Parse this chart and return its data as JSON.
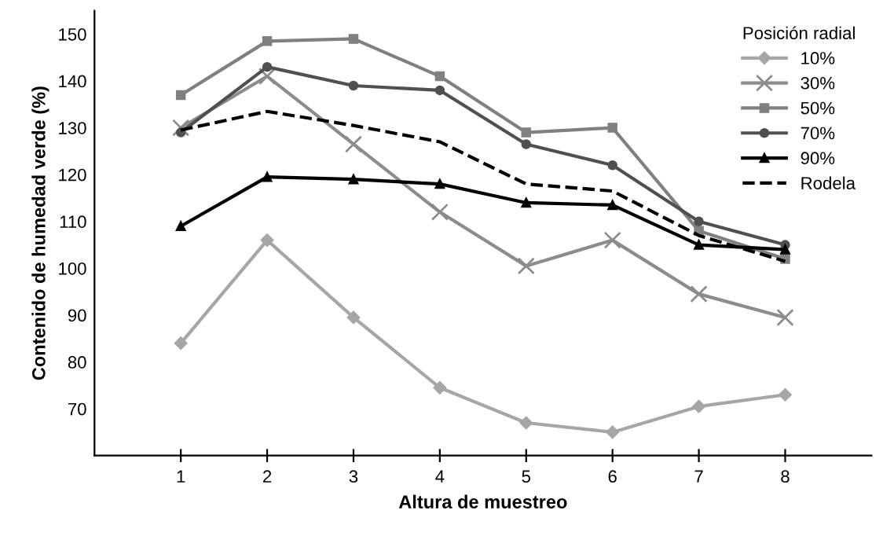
{
  "chart_data": {
    "type": "line",
    "xlabel": "Altura de muestreo",
    "ylabel": "Contenido de humedad verde (%)",
    "legend_title": "Posición radial",
    "legend": "top right",
    "grid": false,
    "x": [
      1,
      2,
      3,
      4,
      5,
      6,
      7,
      8
    ],
    "xlim": [
      0,
      9
    ],
    "xticks": [
      1,
      2,
      3,
      4,
      5,
      6,
      7,
      8
    ],
    "ylim": [
      60,
      155
    ],
    "yticks": [
      70,
      80,
      90,
      100,
      110,
      120,
      130,
      140,
      150
    ],
    "series": [
      {
        "name": "10%",
        "color": "#a6a6a6",
        "marker": "diamond",
        "line_style": "solid",
        "values": [
          84,
          106,
          89.5,
          74.5,
          67,
          65,
          70.5,
          73
        ]
      },
      {
        "name": "30%",
        "color": "#8c8c8c",
        "marker": "cross",
        "line_style": "solid",
        "values": [
          130,
          141,
          126.5,
          112,
          100.5,
          106,
          94.5,
          89.5
        ]
      },
      {
        "name": "50%",
        "color": "#808080",
        "marker": "square",
        "line_style": "solid",
        "values": [
          137,
          148.5,
          149,
          141,
          129,
          130,
          108,
          102
        ]
      },
      {
        "name": "70%",
        "color": "#505050",
        "marker": "circle",
        "line_style": "solid",
        "values": [
          129,
          143,
          139,
          138,
          126.5,
          122,
          110,
          105
        ]
      },
      {
        "name": "90%",
        "color": "#000000",
        "marker": "triangle",
        "line_style": "solid",
        "values": [
          109,
          119.5,
          119,
          118,
          114,
          113.5,
          105,
          104
        ]
      },
      {
        "name": "Rodela",
        "color": "#000000",
        "marker": "none",
        "line_style": "dashed",
        "values": [
          129.5,
          133.5,
          130.5,
          127,
          118,
          116.5,
          107,
          101.5
        ]
      }
    ]
  }
}
